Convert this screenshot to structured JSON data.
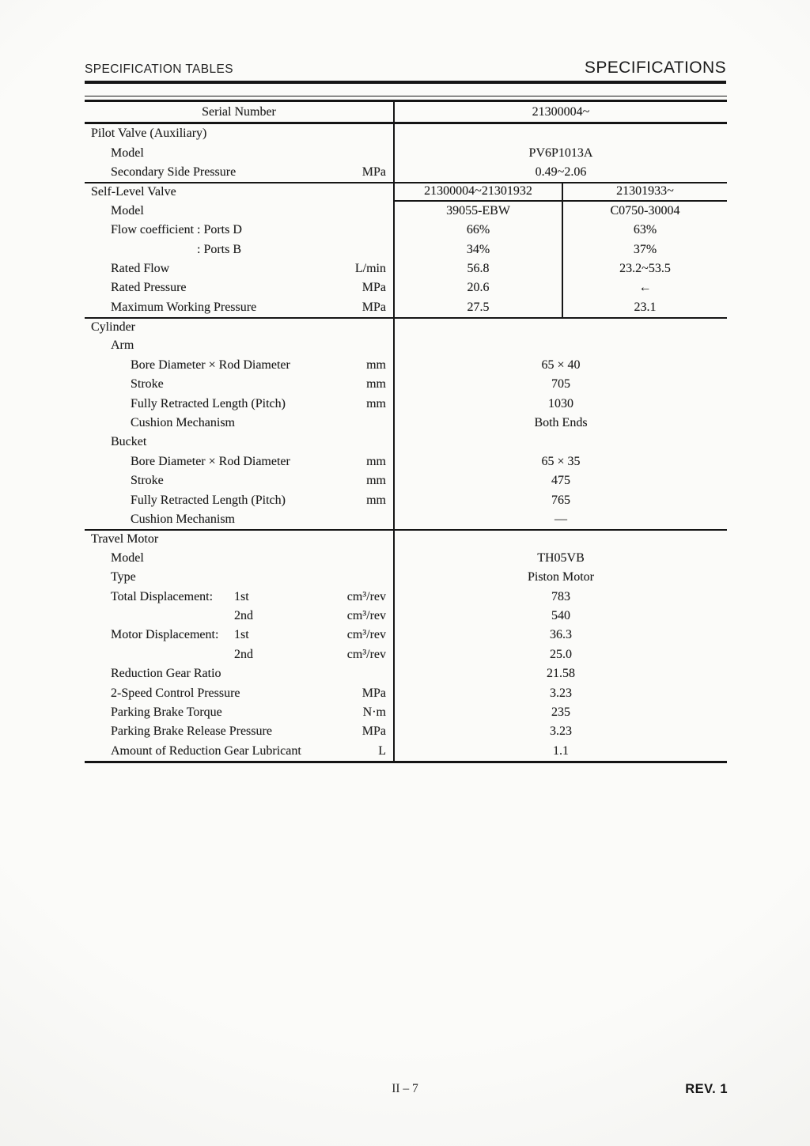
{
  "page": {
    "header_left": "SPECIFICATION TABLES",
    "header_right": "SPECIFICATIONS",
    "footer_page": "II – 7",
    "footer_rev": "REV. 1",
    "text_color": "#1c1c1c",
    "line_color": "#161616"
  },
  "table": {
    "serial": {
      "label": "Serial Number",
      "value": "21300004~"
    },
    "rows": [
      {
        "label": "Pilot Valve (Auxiliary)"
      },
      {
        "label": "Model",
        "value": "PV6P1013A"
      },
      {
        "label": "Secondary Side Pressure",
        "unit": "MPa",
        "value": "0.49~2.06"
      },
      {
        "label": "Self-Level Valve",
        "v1": "21300004~21301932",
        "v2": "21301933~"
      },
      {
        "label": "Model",
        "v1": "39055-EBW",
        "v2": "C0750-30004"
      },
      {
        "label": "Flow coefficient",
        "qualifier": ": Ports D",
        "v1": "66%",
        "v2": "63%"
      },
      {
        "qualifier": ": Ports B",
        "v1": "34%",
        "v2": "37%"
      },
      {
        "label": "Rated Flow",
        "unit": "L/min",
        "v1": "56.8",
        "v2": "23.2~53.5"
      },
      {
        "label": "Rated Pressure",
        "unit": "MPa",
        "v1": "20.6",
        "v2": "←"
      },
      {
        "label": "Maximum Working Pressure",
        "unit": "MPa",
        "v1": "27.5",
        "v2": "23.1"
      },
      {
        "label": "Cylinder"
      },
      {
        "label": "Arm"
      },
      {
        "label": "Bore Diameter × Rod Diameter",
        "unit": "mm",
        "value": "65 × 40"
      },
      {
        "label": "Stroke",
        "unit": "mm",
        "value": "705"
      },
      {
        "label": "Fully Retracted Length (Pitch)",
        "unit": "mm",
        "value": "1030"
      },
      {
        "label": "Cushion Mechanism",
        "value": "Both Ends"
      },
      {
        "label": "Bucket"
      },
      {
        "label": "Bore Diameter × Rod Diameter",
        "unit": "mm",
        "value": "65 × 35"
      },
      {
        "label": "Stroke",
        "unit": "mm",
        "value": "475"
      },
      {
        "label": "Fully Retracted Length (Pitch)",
        "unit": "mm",
        "value": "765"
      },
      {
        "label": "Cushion Mechanism",
        "value": "—"
      },
      {
        "label": "Travel Motor"
      },
      {
        "label": "Model",
        "value": "TH05VB"
      },
      {
        "label": "Type",
        "value": "Piston Motor"
      },
      {
        "label": "Total Displacement:",
        "qualifier": "1st",
        "unit": "cm³/rev",
        "value": "783"
      },
      {
        "qualifier": "2nd",
        "unit": "cm³/rev",
        "value": "540"
      },
      {
        "label": "Motor Displacement:",
        "qualifier": "1st",
        "unit": "cm³/rev",
        "value": "36.3"
      },
      {
        "qualifier": "2nd",
        "unit": "cm³/rev",
        "value": "25.0"
      },
      {
        "label": "Reduction Gear Ratio",
        "value": "21.58"
      },
      {
        "label": "2-Speed Control Pressure",
        "unit": "MPa",
        "value": "3.23"
      },
      {
        "label": "Parking Brake Torque",
        "unit": "N·m",
        "value": "235"
      },
      {
        "label": "Parking Brake Release Pressure",
        "unit": "MPa",
        "value": "3.23"
      },
      {
        "label": "Amount of Reduction Gear Lubricant",
        "unit": "L",
        "value": "1.1"
      }
    ]
  }
}
